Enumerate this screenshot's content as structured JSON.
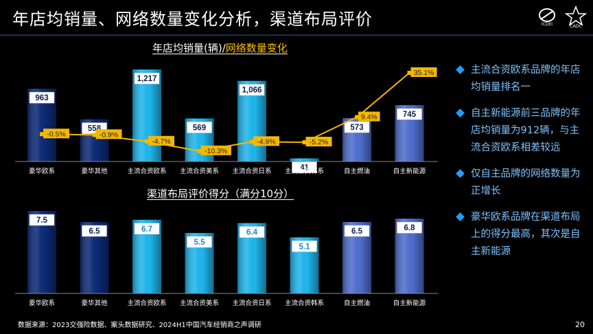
{
  "header": {
    "title": "年店均销量、网络数量变化分析，渠道布局评价",
    "logo1_text": "ICDEI",
    "logo2_text": "CADC"
  },
  "chart_data": [
    {
      "type": "bar+line",
      "title": {
        "part1": "年店均销量(辆)",
        "sep": "/",
        "part2": "网络数量变化"
      },
      "categories": [
        "豪华欧系",
        "豪华其他",
        "主流合资欧系",
        "主流合资美系",
        "主流合资日系",
        "主流合资韩系",
        "自主燃油",
        "自主新能源"
      ],
      "bar_series": {
        "name": "年店均销量(辆)",
        "values": [
          963,
          558,
          1217,
          569,
          1066,
          41,
          573,
          745
        ],
        "labels": [
          "963",
          "558",
          "1,217",
          "569",
          "1,066",
          "41",
          "573",
          "745"
        ],
        "ylim": [
          0,
          1300
        ]
      },
      "line_series": {
        "name": "网络数量变化",
        "values": [
          -0.5,
          -0.9,
          -4.7,
          -10.3,
          -4.9,
          -5.2,
          9.4,
          35.1
        ],
        "labels": [
          "-0.5%",
          "-0.9%",
          "-4.7%",
          "-10.3%",
          "-4.9%",
          "-5.2%",
          "9.4%",
          "35.1%"
        ],
        "ylim": [
          -15,
          40
        ]
      }
    },
    {
      "type": "bar",
      "title": "渠道布局评价得分（满分10分）",
      "categories": [
        "豪华欧系",
        "豪华其他",
        "主流合资欧系",
        "主流合资美系",
        "主流合资日系",
        "主流合资韩系",
        "自主燃油",
        "自主新能源"
      ],
      "values": [
        7.5,
        6.5,
        6.7,
        5.5,
        6.4,
        5.1,
        6.5,
        6.8
      ],
      "labels": [
        "7.5",
        "6.5",
        "6.7",
        "5.5",
        "6.4",
        "5.1",
        "6.5",
        "6.8"
      ],
      "ylim": [
        0,
        8
      ]
    }
  ],
  "bar_colors": [
    "#0d2a78",
    "#0d2a78",
    "#1fb7ee",
    "#1fb7ee",
    "#1fb7ee",
    "#1fb7ee",
    "#4f6fd0",
    "#4f6fd0"
  ],
  "line_color": "#f5b800",
  "bullets": [
    "主流合资欧系品牌的年店均销量排名一",
    "自主新能源前三品牌的年店均销量为912辆，与主流合资欧系相差较远",
    "仅自主品牌的网络数量为正增长",
    "豪华欧系品牌在渠道布局上的得分最高，其次是自主新能源"
  ],
  "footer": {
    "source": "数据来源：2023交强险数据、案头数据研究、2024H1中国汽车经销商之声调研",
    "page": "20"
  }
}
